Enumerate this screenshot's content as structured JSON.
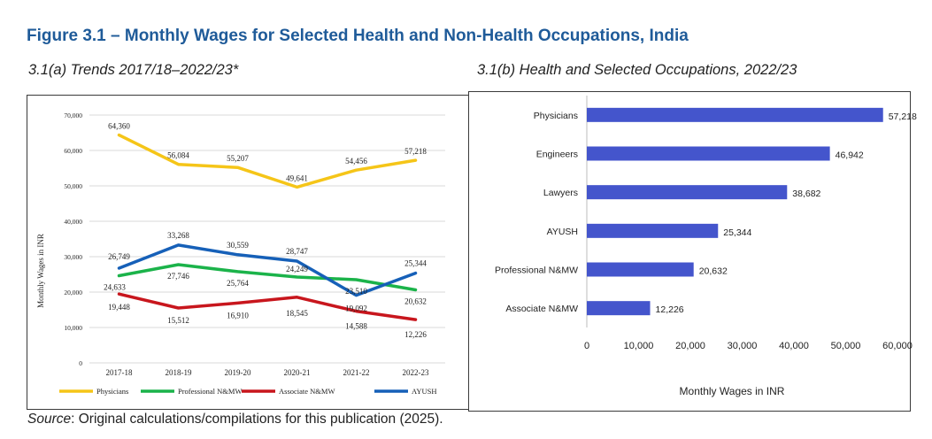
{
  "figure_title": "Figure 3.1 – Monthly Wages for Selected Health and Non-Health Occupations, India",
  "source_label": "Source",
  "source_text": ": Original calculations/compilations for this publication (2025).",
  "chart_data": [
    {
      "type": "line",
      "title": "3.1(a) Trends 2017/18–2022/23*",
      "ylabel": "Monthly Wages in INR",
      "xlabel": "",
      "ylim": [
        0,
        70000
      ],
      "yticks": [
        "0",
        "10,000",
        "20,000",
        "30,000",
        "40,000",
        "50,000",
        "60,000",
        "70,000"
      ],
      "ytick_values": [
        0,
        10000,
        20000,
        30000,
        40000,
        50000,
        60000,
        70000
      ],
      "grid": true,
      "legend_position": "bottom",
      "categories": [
        "2017-18",
        "2018-19",
        "2019-20",
        "2020-21",
        "2021-22",
        "2022-23"
      ],
      "series": [
        {
          "name": "Physicians",
          "color": "#f5c518",
          "values": [
            64360,
            56084,
            55207,
            49641,
            54456,
            57218
          ],
          "labels": [
            "64,360",
            "56,084",
            "55,207",
            "49,641",
            "54,456",
            "57,218"
          ]
        },
        {
          "name": "Professional N&MW",
          "color": "#1bb34a",
          "values": [
            24633,
            27746,
            25764,
            24249,
            23510,
            20632
          ],
          "labels": [
            "24,633",
            "27,746",
            "25,764",
            "24,249",
            "23,510",
            "20,632"
          ]
        },
        {
          "name": "Associate N&MW",
          "color": "#c8161d",
          "values": [
            19448,
            15512,
            16910,
            18545,
            14588,
            12226
          ],
          "labels": [
            "19,448",
            "15,512",
            "16,910",
            "18,545",
            "14,588",
            "12,226"
          ]
        },
        {
          "name": "AYUSH",
          "color": "#1660b8",
          "values": [
            26749,
            33268,
            30559,
            28747,
            19092,
            25344
          ],
          "labels": [
            "26,749",
            "33,268",
            "30,559",
            "28,747",
            "19,092",
            "25,344"
          ]
        }
      ]
    },
    {
      "type": "bar",
      "orientation": "horizontal",
      "title": "3.1(b) Health and Selected Occupations, 2022/23",
      "xlabel": "Monthly Wages in INR",
      "ylabel": "",
      "xlim": [
        0,
        60000
      ],
      "xticks": [
        "0",
        "10,000",
        "20,000",
        "30,000",
        "40,000",
        "50,000",
        "60,000"
      ],
      "xtick_values": [
        0,
        10000,
        20000,
        30000,
        40000,
        50000,
        60000
      ],
      "grid": false,
      "bar_color": "#4455cc",
      "categories": [
        "Physicians",
        "Engineers",
        "Lawyers",
        "AYUSH",
        "Professional N&MW",
        "Associate N&MW"
      ],
      "values": [
        57218,
        46942,
        38682,
        25344,
        20632,
        12226
      ],
      "labels": [
        "57,218",
        "46,942",
        "38,682",
        "25,344",
        "20,632",
        "12,226"
      ]
    }
  ]
}
